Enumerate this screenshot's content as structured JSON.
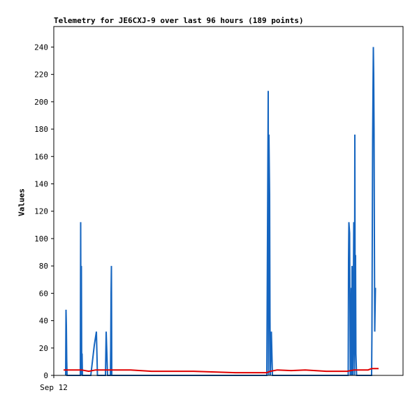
{
  "chart_data": {
    "type": "line",
    "title": "Telemetry for JE6CXJ-9 over last 96 hours (189 points)",
    "ylabel": "Values",
    "xlabel": "",
    "ylim": [
      0,
      255
    ],
    "xlim": [
      0,
      100
    ],
    "yticks": [
      0,
      20,
      40,
      60,
      80,
      100,
      120,
      140,
      160,
      180,
      200,
      220,
      240
    ],
    "xticks": [
      {
        "x": 0,
        "label": "Sep 12"
      }
    ],
    "grid": false,
    "colors": {
      "series1": "#1565c0",
      "series2": "#e00000",
      "series3": "#000000"
    },
    "series": [
      {
        "color": "#1565c0",
        "points": [
          [
            3.4,
            0
          ],
          [
            3.5,
            48
          ],
          [
            3.6,
            36
          ],
          [
            3.7,
            12
          ],
          [
            3.8,
            0
          ],
          [
            7.6,
            0
          ],
          [
            7.7,
            112
          ],
          [
            7.8,
            0
          ],
          [
            7.9,
            80
          ],
          [
            8.0,
            0
          ],
          [
            8.1,
            16
          ],
          [
            8.2,
            0
          ],
          [
            10.6,
            0
          ],
          [
            11.6,
            22
          ],
          [
            12.2,
            32
          ],
          [
            12.5,
            0
          ],
          [
            14.8,
            0
          ],
          [
            15.0,
            32
          ],
          [
            15.2,
            16
          ],
          [
            15.4,
            0
          ],
          [
            16.2,
            0
          ],
          [
            16.3,
            20
          ],
          [
            16.4,
            60
          ],
          [
            16.5,
            80
          ],
          [
            16.6,
            0
          ],
          [
            61.0,
            0
          ],
          [
            61.2,
            104
          ],
          [
            61.4,
            208
          ],
          [
            61.5,
            0
          ],
          [
            61.6,
            176
          ],
          [
            61.8,
            132
          ],
          [
            61.9,
            44
          ],
          [
            62.0,
            0
          ],
          [
            62.3,
            32
          ],
          [
            62.6,
            0
          ],
          [
            84.3,
            0
          ],
          [
            84.4,
            84
          ],
          [
            84.5,
            112
          ],
          [
            84.7,
            104
          ],
          [
            84.8,
            48
          ],
          [
            84.9,
            0
          ],
          [
            85.2,
            64
          ],
          [
            85.3,
            0
          ],
          [
            85.4,
            80
          ],
          [
            85.5,
            16
          ],
          [
            85.6,
            0
          ],
          [
            85.8,
            72
          ],
          [
            85.9,
            112
          ],
          [
            86.0,
            28
          ],
          [
            86.1,
            0
          ],
          [
            86.2,
            176
          ],
          [
            86.3,
            20
          ],
          [
            86.4,
            88
          ],
          [
            86.5,
            16
          ],
          [
            86.7,
            0
          ],
          [
            91.0,
            0
          ],
          [
            91.1,
            32
          ],
          [
            91.2,
            104
          ],
          [
            91.3,
            172
          ],
          [
            91.4,
            208
          ],
          [
            91.5,
            240
          ],
          [
            91.6,
            220
          ],
          [
            91.7,
            180
          ],
          [
            91.8,
            100
          ],
          [
            91.9,
            32
          ],
          [
            92.0,
            48
          ],
          [
            92.1,
            64
          ]
        ]
      },
      {
        "color": "#e00000",
        "points": [
          [
            2.8,
            4
          ],
          [
            5.5,
            4
          ],
          [
            8,
            4
          ],
          [
            10,
            3
          ],
          [
            12,
            4
          ],
          [
            18,
            4
          ],
          [
            22,
            4
          ],
          [
            28,
            3
          ],
          [
            40,
            3
          ],
          [
            52,
            2
          ],
          [
            61,
            2
          ],
          [
            62,
            3
          ],
          [
            64,
            4
          ],
          [
            68,
            3.5
          ],
          [
            72,
            4
          ],
          [
            78,
            3
          ],
          [
            84,
            3
          ],
          [
            86,
            4
          ],
          [
            88,
            4
          ],
          [
            90,
            4
          ],
          [
            91,
            5
          ],
          [
            93,
            5
          ]
        ]
      },
      {
        "color": "#000000",
        "points": [
          [
            2.8,
            0
          ],
          [
            93,
            0
          ]
        ]
      }
    ]
  }
}
